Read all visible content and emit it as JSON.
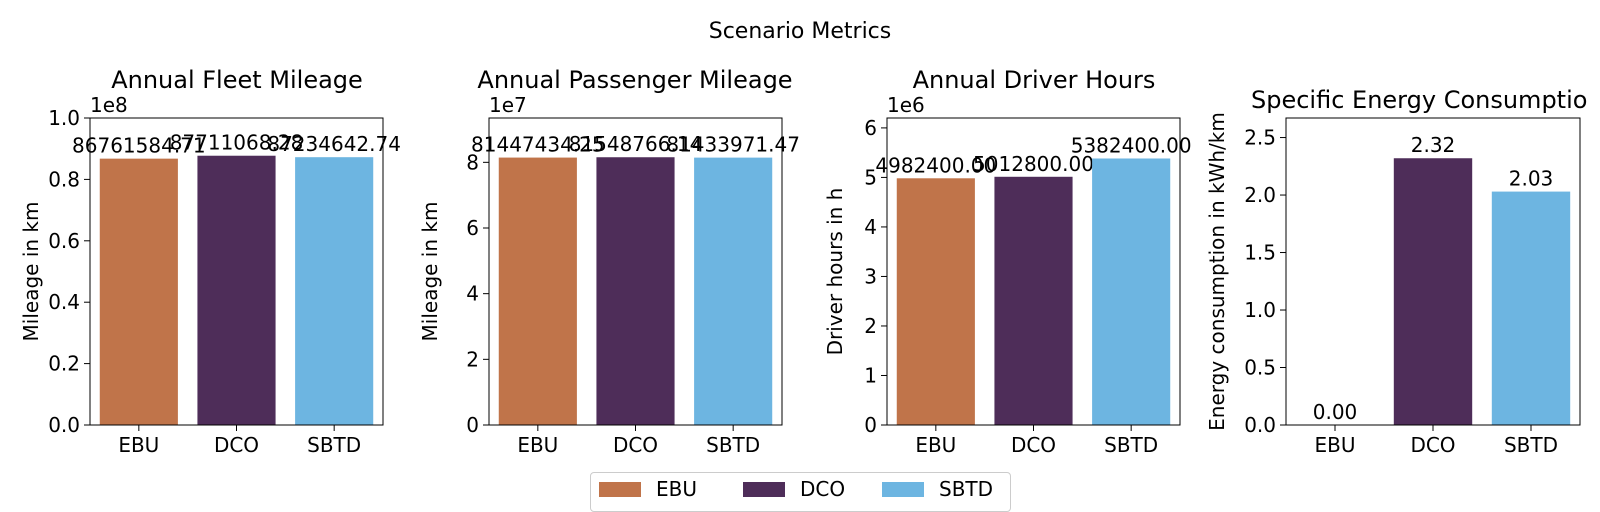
{
  "figure": {
    "suptitle": "Scenario Metrics",
    "legend": {
      "placement": "bottom-center",
      "entries": [
        {
          "label": "EBU",
          "color": "#c0744a"
        },
        {
          "label": "DCO",
          "color": "#4e2d59"
        },
        {
          "label": "SBTD",
          "color": "#6db5e1"
        }
      ]
    }
  },
  "chart_data": [
    {
      "type": "bar",
      "title": "Annual Fleet Mileage",
      "ylabel": "Mileage in km",
      "xlabel": "",
      "categories": [
        "EBU",
        "DCO",
        "SBTD"
      ],
      "values": [
        86761584.71,
        87711068.28,
        87234642.74
      ],
      "value_labels": [
        "86761584.71",
        "87711068.28",
        "87234642.74"
      ],
      "colors": [
        "#c0744a",
        "#4e2d59",
        "#6db5e1"
      ],
      "ylim": [
        0,
        100000000
      ],
      "yscale_factor": 100000000,
      "offset_text": "1e8",
      "yticks": [
        0,
        0.2,
        0.4,
        0.6,
        0.8,
        1.0
      ],
      "ytick_labels": [
        "0.0",
        "0.2",
        "0.4",
        "0.6",
        "0.8",
        "1.0"
      ],
      "grid": false
    },
    {
      "type": "bar",
      "title": "Annual Passenger Mileage",
      "ylabel": "Mileage in km",
      "xlabel": "",
      "categories": [
        "EBU",
        "DCO",
        "SBTD"
      ],
      "values": [
        81447434.25,
        81548766.14,
        81433971.47
      ],
      "value_labels": [
        "81447434.25",
        "81548766.14",
        "81433971.47"
      ],
      "colors": [
        "#c0744a",
        "#4e2d59",
        "#6db5e1"
      ],
      "ylim": [
        0,
        93500000
      ],
      "yscale_factor": 10000000,
      "offset_text": "1e7",
      "yticks": [
        0,
        2,
        4,
        6,
        8
      ],
      "ytick_labels": [
        "0",
        "2",
        "4",
        "6",
        "8"
      ],
      "grid": false
    },
    {
      "type": "bar",
      "title": "Annual Driver Hours",
      "ylabel": "Driver hours in h",
      "xlabel": "",
      "categories": [
        "EBU",
        "DCO",
        "SBTD"
      ],
      "values": [
        4982400.0,
        5012800.0,
        5382400.0
      ],
      "value_labels": [
        "4982400.00",
        "5012800.00",
        "5382400.00"
      ],
      "colors": [
        "#c0744a",
        "#4e2d59",
        "#6db5e1"
      ],
      "ylim": [
        0,
        6200000
      ],
      "yscale_factor": 1000000,
      "offset_text": "1e6",
      "yticks": [
        0,
        1,
        2,
        3,
        4,
        5,
        6
      ],
      "ytick_labels": [
        "0",
        "1",
        "2",
        "3",
        "4",
        "5",
        "6"
      ],
      "grid": false
    },
    {
      "type": "bar",
      "title": "Specific Energy Consumptio",
      "ylabel": "Energy consumption in kWh/km",
      "xlabel": "",
      "categories": [
        "EBU",
        "DCO",
        "SBTD"
      ],
      "values": [
        0.0,
        2.32,
        2.03
      ],
      "value_labels": [
        "0.00",
        "2.32",
        "2.03"
      ],
      "colors": [
        "#c0744a",
        "#4e2d59",
        "#6db5e1"
      ],
      "ylim": [
        0,
        2.67
      ],
      "yscale_factor": 1,
      "offset_text": "",
      "yticks": [
        0,
        0.5,
        1.0,
        1.5,
        2.0,
        2.5
      ],
      "ytick_labels": [
        "0.0",
        "0.5",
        "1.0",
        "1.5",
        "2.0",
        "2.5"
      ],
      "grid": false
    }
  ]
}
